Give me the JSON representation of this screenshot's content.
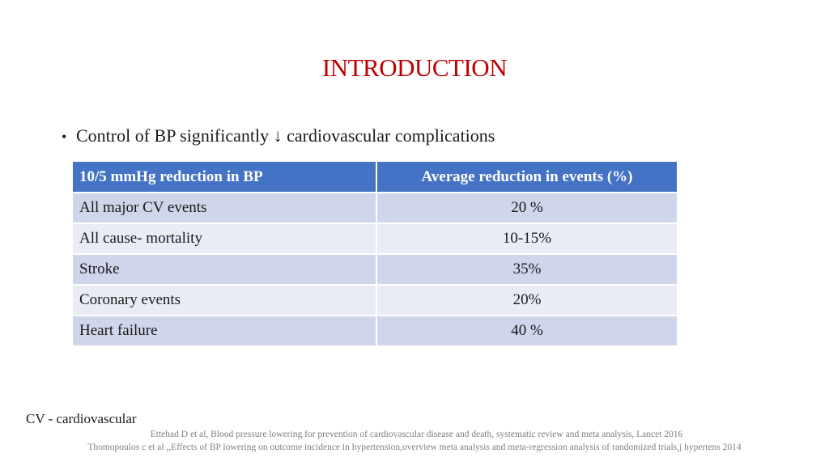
{
  "slide": {
    "title": "INTRODUCTION",
    "bullet": {
      "marker": "•",
      "text": "Control of BP significantly ↓ cardiovascular complications"
    },
    "table": {
      "headers": [
        "10/5 mmHg reduction in BP",
        "Average reduction in events (%)"
      ],
      "rows": [
        {
          "label": "All major CV events",
          "value": "20 %"
        },
        {
          "label": "All cause- mortality",
          "value": "10-15%"
        },
        {
          "label": "Stroke",
          "value": "35%"
        },
        {
          "label": "Coronary events",
          "value": "20%"
        },
        {
          "label": "Heart failure",
          "value": "40 %"
        }
      ],
      "colors": {
        "header_bg": "#4472c4",
        "row_odd_bg": "#cfd5ea",
        "row_even_bg": "#e9ebf5"
      }
    },
    "footnote": "CV - cardiovascular",
    "references": [
      "Ettehad D et al, Blood pressure lowering for prevention of cardiovascular disease and death, systematic review and meta analysis, Lancet 2016",
      "Thomopoulos c et al ,,Effects of BP lowering on outcome incidence in hypertension,overview meta analysis and meta-regression analysis of randomized trials,j hypertens 2014"
    ],
    "title_color": "#c00000"
  }
}
